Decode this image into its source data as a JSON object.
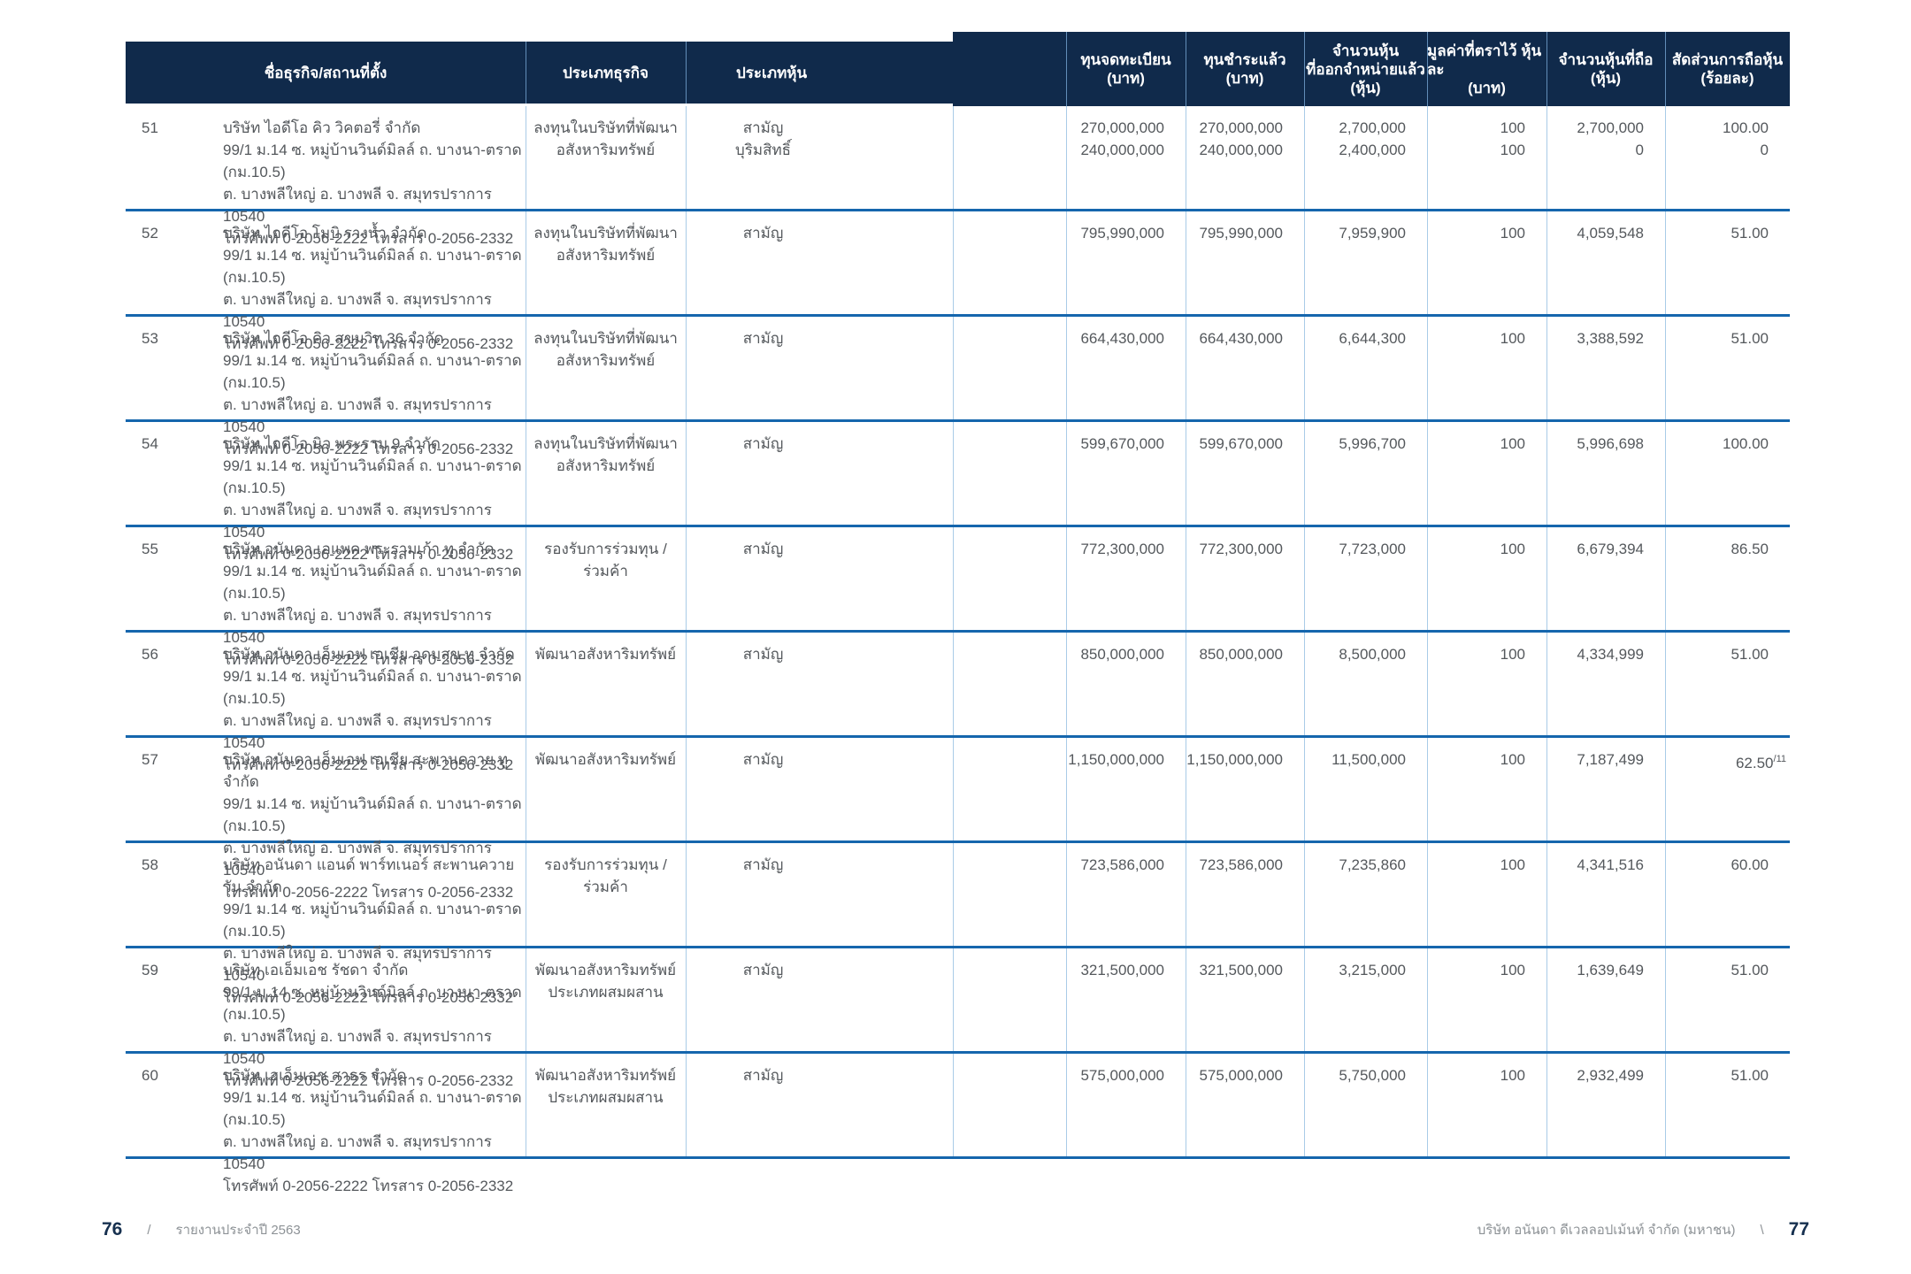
{
  "colors": {
    "header_bg": "#102a4b",
    "row_separator": "#1566ad",
    "column_divider": "#a9cbe7",
    "body_text": "#54585c",
    "page_number": "#16304f",
    "footer_text": "#8d9296"
  },
  "table": {
    "headers": {
      "name": "ชื่อธุรกิจ/สถานที่ตั้ง",
      "business_type": "ประเภทธุรกิจ",
      "share_type": "ประเภทหุ้น",
      "registered_capital": [
        "ทุนจดทะเบียน",
        "(บาท)"
      ],
      "paid_up_capital": [
        "ทุนชำระแล้ว",
        "(บาท)"
      ],
      "shares_issued": [
        "จำนวนหุ้น",
        "ที่ออกจำหน่ายแล้ว",
        "(หุ้น)"
      ],
      "par_value": [
        "มูลค่าที่ตราไว้ หุ้นละ",
        "(บาท)"
      ],
      "shares_held": [
        "จำนวนหุ้นที่ถือ",
        "(หุ้น)"
      ],
      "holding_percent": [
        "สัดส่วนการถือหุ้น",
        "(ร้อยละ)"
      ]
    },
    "rows": [
      {
        "no": "51",
        "name": "บริษัท ไอดีโอ คิว วิคตอรี่ จำกัด",
        "address": [
          "99/1 ม.14 ซ. หมู่บ้านวินด์มิลล์ ถ. บางนา-ตราด (กม.10.5)",
          "ต. บางพลีใหญ่ อ. บางพลี จ. สมุทรปราการ 10540",
          "โทรศัพท์ 0-2056-2222 โทรสาร 0-2056-2332"
        ],
        "business_type": [
          "ลงทุนในบริษัทที่พัฒนา",
          "อสังหาริมทรัพย์"
        ],
        "share_type": [
          "สามัญ",
          "บุริมสิทธิ์"
        ],
        "registered": [
          "270,000,000",
          "240,000,000"
        ],
        "paid": [
          "270,000,000",
          "240,000,000"
        ],
        "issued": [
          "2,700,000",
          "2,400,000"
        ],
        "par": [
          "100",
          "100"
        ],
        "held": [
          "2,700,000",
          "0"
        ],
        "pct": [
          "100.00",
          "0"
        ],
        "pct_note": ""
      },
      {
        "no": "52",
        "name": "บริษัท ไอดีโอ โมบิ รางน้ำ จำกัด",
        "address": [
          "99/1 ม.14 ซ. หมู่บ้านวินด์มิลล์ ถ. บางนา-ตราด (กม.10.5)",
          "ต. บางพลีใหญ่ อ. บางพลี จ. สมุทรปราการ 10540",
          "โทรศัพท์ 0-2056-2222 โทรสาร 0-2056-2332"
        ],
        "business_type": [
          "ลงทุนในบริษัทที่พัฒนา",
          "อสังหาริมทรัพย์"
        ],
        "share_type": [
          "สามัญ"
        ],
        "registered": [
          "795,990,000"
        ],
        "paid": [
          "795,990,000"
        ],
        "issued": [
          "7,959,900"
        ],
        "par": [
          "100"
        ],
        "held": [
          "4,059,548"
        ],
        "pct": [
          "51.00"
        ],
        "pct_note": ""
      },
      {
        "no": "53",
        "name": "บริษัท ไอดีโอ คิว สุขุมวิท 36 จำกัด",
        "address": [
          "99/1 ม.14 ซ. หมู่บ้านวินด์มิลล์ ถ. บางนา-ตราด (กม.10.5)",
          "ต. บางพลีใหญ่ อ. บางพลี จ. สมุทรปราการ 10540",
          "โทรศัพท์ 0-2056-2222 โทรสาร 0-2056-2332"
        ],
        "business_type": [
          "ลงทุนในบริษัทที่พัฒนา",
          "อสังหาริมทรัพย์"
        ],
        "share_type": [
          "สามัญ"
        ],
        "registered": [
          "664,430,000"
        ],
        "paid": [
          "664,430,000"
        ],
        "issued": [
          "6,644,300"
        ],
        "par": [
          "100"
        ],
        "held": [
          "3,388,592"
        ],
        "pct": [
          "51.00"
        ],
        "pct_note": ""
      },
      {
        "no": "54",
        "name": "บริษัท ไอดีโอ นิว พระราม 9 จำกัด",
        "address": [
          "99/1 ม.14 ซ. หมู่บ้านวินด์มิลล์ ถ. บางนา-ตราด (กม.10.5)",
          "ต. บางพลีใหญ่ อ. บางพลี จ. สมุทรปราการ 10540",
          "โทรศัพท์ 0-2056-2222 โทรสาร 0-2056-2332"
        ],
        "business_type": [
          "ลงทุนในบริษัทที่พัฒนา",
          "อสังหาริมทรัพย์"
        ],
        "share_type": [
          "สามัญ"
        ],
        "registered": [
          "599,670,000"
        ],
        "paid": [
          "599,670,000"
        ],
        "issued": [
          "5,996,700"
        ],
        "par": [
          "100"
        ],
        "held": [
          "5,996,698"
        ],
        "pct": [
          "100.00"
        ],
        "pct_note": ""
      },
      {
        "no": "55",
        "name": "บริษัท อนันดา เอแพค พระรามเก้า ทู จำกัด",
        "address": [
          "99/1 ม.14 ซ. หมู่บ้านวินด์มิลล์ ถ. บางนา-ตราด (กม.10.5)",
          "ต. บางพลีใหญ่ อ. บางพลี จ. สมุทรปราการ 10540",
          "โทรศัพท์ 0-2056-2222 โทรสาร 0-2056-2332"
        ],
        "business_type": [
          "รองรับการร่วมทุน /",
          "ร่วมค้า"
        ],
        "share_type": [
          "สามัญ"
        ],
        "registered": [
          "772,300,000"
        ],
        "paid": [
          "772,300,000"
        ],
        "issued": [
          "7,723,000"
        ],
        "par": [
          "100"
        ],
        "held": [
          "6,679,394"
        ],
        "pct": [
          "86.50"
        ],
        "pct_note": ""
      },
      {
        "no": "56",
        "name": "บริษัท อนันดา เอ็มเอฟ เอเชีย อุดมสุข ทู จำกัด",
        "address": [
          "99/1 ม.14 ซ. หมู่บ้านวินด์มิลล์ ถ. บางนา-ตราด (กม.10.5)",
          "ต. บางพลีใหญ่ อ. บางพลี จ. สมุทรปราการ 10540",
          "โทรศัพท์ 0-2056-2222 โทรสาร 0-2056-2332"
        ],
        "business_type": [
          "พัฒนาอสังหาริมทรัพย์"
        ],
        "share_type": [
          "สามัญ"
        ],
        "registered": [
          "850,000,000"
        ],
        "paid": [
          "850,000,000"
        ],
        "issued": [
          "8,500,000"
        ],
        "par": [
          "100"
        ],
        "held": [
          "4,334,999"
        ],
        "pct": [
          "51.00"
        ],
        "pct_note": ""
      },
      {
        "no": "57",
        "name": "บริษัท อนันดา เอ็มเอฟ เอเชีย สะพานควาย ทู จำกัด",
        "address": [
          "99/1 ม.14 ซ. หมู่บ้านวินด์มิลล์ ถ. บางนา-ตราด (กม.10.5)",
          "ต. บางพลีใหญ่ อ. บางพลี จ. สมุทรปราการ 10540",
          "โทรศัพท์ 0-2056-2222 โทรสาร 0-2056-2332"
        ],
        "business_type": [
          "พัฒนาอสังหาริมทรัพย์"
        ],
        "share_type": [
          "สามัญ"
        ],
        "registered": [
          "1,150,000,000"
        ],
        "paid": [
          "1,150,000,000"
        ],
        "issued": [
          "11,500,000"
        ],
        "par": [
          "100"
        ],
        "held": [
          "7,187,499"
        ],
        "pct": [
          "62.50"
        ],
        "pct_note": "/11"
      },
      {
        "no": "58",
        "name": "บริษัท อนันดา แอนด์ พาร์ทเนอร์ สะพานควาย วัน จำกัด",
        "address": [
          "99/1 ม.14 ซ. หมู่บ้านวินด์มิลล์ ถ. บางนา-ตราด (กม.10.5)",
          "ต. บางพลีใหญ่ อ. บางพลี จ. สมุทรปราการ 10540",
          "โทรศัพท์ 0-2056-2222 โทรสาร 0-2056-2332"
        ],
        "business_type": [
          "รองรับการร่วมทุน /",
          "ร่วมค้า"
        ],
        "share_type": [
          "สามัญ"
        ],
        "registered": [
          "723,586,000"
        ],
        "paid": [
          "723,586,000"
        ],
        "issued": [
          "7,235,860"
        ],
        "par": [
          "100"
        ],
        "held": [
          "4,341,516"
        ],
        "pct": [
          "60.00"
        ],
        "pct_note": ""
      },
      {
        "no": "59",
        "name": "บริษัท เอเอ็มเอช รัชดา จำกัด",
        "address": [
          "99/1 ม.14 ซ. หมู่บ้านวินด์มิลล์ ถ. บางนา-ตราด (กม.10.5)",
          "ต. บางพลีใหญ่ อ. บางพลี จ. สมุทรปราการ 10540",
          "โทรศัพท์ 0-2056-2222 โทรสาร 0-2056-2332"
        ],
        "business_type": [
          "พัฒนาอสังหาริมทรัพย์",
          "ประเภทผสมผสาน"
        ],
        "share_type": [
          "สามัญ"
        ],
        "registered": [
          "321,500,000"
        ],
        "paid": [
          "321,500,000"
        ],
        "issued": [
          "3,215,000"
        ],
        "par": [
          "100"
        ],
        "held": [
          "1,639,649"
        ],
        "pct": [
          "51.00"
        ],
        "pct_note": ""
      },
      {
        "no": "60",
        "name": "บริษัท เอเอ็มเอช สาธร จำกัด",
        "address": [
          "99/1 ม.14 ซ. หมู่บ้านวินด์มิลล์ ถ. บางนา-ตราด (กม.10.5)",
          "ต. บางพลีใหญ่ อ. บางพลี จ. สมุทรปราการ 10540",
          "โทรศัพท์ 0-2056-2222 โทรสาร 0-2056-2332"
        ],
        "business_type": [
          "พัฒนาอสังหาริมทรัพย์",
          "ประเภทผสมผสาน"
        ],
        "share_type": [
          "สามัญ"
        ],
        "registered": [
          "575,000,000"
        ],
        "paid": [
          "575,000,000"
        ],
        "issued": [
          "5,750,000"
        ],
        "par": [
          "100"
        ],
        "held": [
          "2,932,499"
        ],
        "pct": [
          "51.00"
        ],
        "pct_note": ""
      }
    ]
  },
  "footer": {
    "left_page": "76",
    "left_separator": "/",
    "left_text": "รายงานประจำปี 2563",
    "right_text": "บริษัท อนันดา ดีเวลลอปเม้นท์ จำกัด (มหาชน)",
    "right_separator": "\\",
    "right_page": "77"
  }
}
